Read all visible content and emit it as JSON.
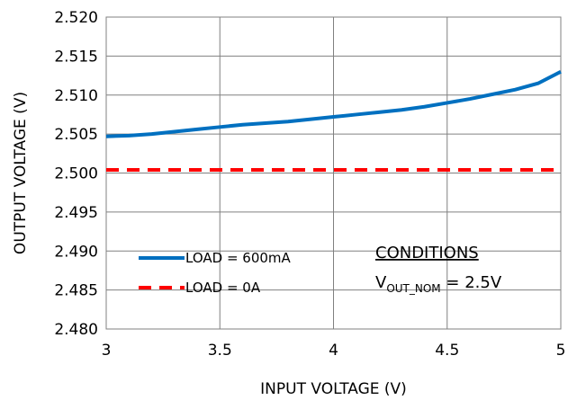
{
  "chart_data": {
    "type": "line",
    "xlabel": "INPUT VOLTAGE (V)",
    "ylabel": "OUTPUT VOLTAGE (V)",
    "xlim": [
      3,
      5
    ],
    "ylim": [
      2.48,
      2.52
    ],
    "x_ticks": [
      3,
      3.5,
      4,
      4.5,
      5
    ],
    "x_tick_labels": [
      "3",
      "3.5",
      "4",
      "4.5",
      "5"
    ],
    "y_ticks": [
      2.48,
      2.485,
      2.49,
      2.495,
      2.5,
      2.505,
      2.51,
      2.515,
      2.52
    ],
    "y_tick_labels": [
      "2.480",
      "2.485",
      "2.490",
      "2.495",
      "2.500",
      "2.505",
      "2.510",
      "2.515",
      "2.520"
    ],
    "grid": true,
    "legend_position": "bottom-left",
    "series": [
      {
        "name": "LOAD = 600mA",
        "color": "#0070C0",
        "style": "solid",
        "x": [
          3.0,
          3.1,
          3.2,
          3.3,
          3.4,
          3.5,
          3.6,
          3.7,
          3.8,
          3.9,
          4.0,
          4.1,
          4.2,
          4.3,
          4.4,
          4.5,
          4.6,
          4.7,
          4.8,
          4.9,
          5.0
        ],
        "y": [
          2.5047,
          2.5048,
          2.505,
          2.5053,
          2.5056,
          2.5059,
          2.5062,
          2.5064,
          2.5066,
          2.5069,
          2.5072,
          2.5075,
          2.5078,
          2.5081,
          2.5085,
          2.509,
          2.5095,
          2.5101,
          2.5107,
          2.5115,
          2.513
        ]
      },
      {
        "name": "LOAD = 0A",
        "color": "#FF0000",
        "style": "dashed",
        "x": [
          3.0,
          3.5,
          4.0,
          4.5,
          5.0
        ],
        "y": [
          2.5004,
          2.5004,
          2.5004,
          2.5004,
          2.5004
        ]
      }
    ],
    "annotation": {
      "heading": "CONDITIONS",
      "label_main": "V",
      "label_sub": "OUT_NOM",
      "label_value": " = 2.5V"
    }
  }
}
